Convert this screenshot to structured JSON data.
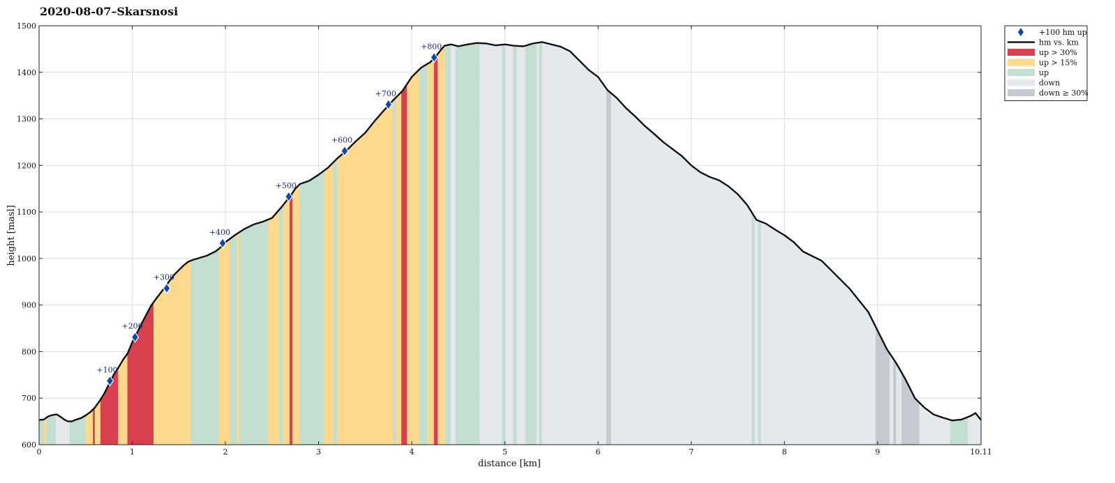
{
  "chart_data": {
    "type": "area",
    "title": "2020-08-07–Skarsnosi",
    "xlabel": "distance [km]",
    "ylabel": "height [masl]",
    "xlim": [
      0,
      10.11
    ],
    "ylim": [
      600,
      1500
    ],
    "x_ticks": [
      {
        "v": 0,
        "label": "0"
      },
      {
        "v": 1,
        "label": "1"
      },
      {
        "v": 2,
        "label": "2"
      },
      {
        "v": 3,
        "label": "3"
      },
      {
        "v": 4,
        "label": "4"
      },
      {
        "v": 5,
        "label": "5"
      },
      {
        "v": 6,
        "label": "6"
      },
      {
        "v": 7,
        "label": "7"
      },
      {
        "v": 8,
        "label": "8"
      },
      {
        "v": 9,
        "label": "9"
      },
      {
        "v": 10.11,
        "label": "10.11"
      }
    ],
    "y_ticks": [
      {
        "v": 600,
        "label": "600"
      },
      {
        "v": 700,
        "label": "700"
      },
      {
        "v": 800,
        "label": "800"
      },
      {
        "v": 900,
        "label": "900"
      },
      {
        "v": 1000,
        "label": "1000"
      },
      {
        "v": 1100,
        "label": "1100"
      },
      {
        "v": 1200,
        "label": "1200"
      },
      {
        "v": 1300,
        "label": "1300"
      },
      {
        "v": 1400,
        "label": "1400"
      },
      {
        "v": 1500,
        "label": "1500"
      }
    ],
    "grid": true,
    "legend_position": "outside top-right",
    "colors": {
      "up_gt_30": "#d9404f",
      "up_gt_15": "#fcd98c",
      "up": "#c2dfd2",
      "down": "#e7e8ec",
      "down_ge_30": "#c6c8d2",
      "line": "#111111",
      "marker": "#1446a8"
    },
    "profile": [
      [
        0.0,
        653
      ],
      [
        0.05,
        654
      ],
      [
        0.1,
        661
      ],
      [
        0.15,
        664
      ],
      [
        0.19,
        665
      ],
      [
        0.23,
        660
      ],
      [
        0.27,
        654
      ],
      [
        0.31,
        650
      ],
      [
        0.35,
        650
      ],
      [
        0.4,
        654
      ],
      [
        0.45,
        657
      ],
      [
        0.5,
        663
      ],
      [
        0.55,
        670
      ],
      [
        0.6,
        680
      ],
      [
        0.65,
        694
      ],
      [
        0.7,
        710
      ],
      [
        0.75,
        730
      ],
      [
        0.8,
        750
      ],
      [
        0.85,
        765
      ],
      [
        0.9,
        782
      ],
      [
        0.95,
        796
      ],
      [
        1.0,
        820
      ],
      [
        1.05,
        840
      ],
      [
        1.1,
        860
      ],
      [
        1.15,
        879
      ],
      [
        1.2,
        898
      ],
      [
        1.25,
        912
      ],
      [
        1.3,
        925
      ],
      [
        1.35,
        938
      ],
      [
        1.4,
        952
      ],
      [
        1.45,
        965
      ],
      [
        1.5,
        975
      ],
      [
        1.55,
        985
      ],
      [
        1.6,
        993
      ],
      [
        1.65,
        997
      ],
      [
        1.7,
        1000
      ],
      [
        1.8,
        1006
      ],
      [
        1.9,
        1016
      ],
      [
        1.95,
        1024
      ],
      [
        2.0,
        1035
      ],
      [
        2.1,
        1050
      ],
      [
        2.2,
        1063
      ],
      [
        2.3,
        1073
      ],
      [
        2.4,
        1079
      ],
      [
        2.5,
        1087
      ],
      [
        2.6,
        1110
      ],
      [
        2.7,
        1135
      ],
      [
        2.75,
        1150
      ],
      [
        2.8,
        1160
      ],
      [
        2.9,
        1167
      ],
      [
        3.0,
        1180
      ],
      [
        3.1,
        1195
      ],
      [
        3.2,
        1215
      ],
      [
        3.3,
        1232
      ],
      [
        3.4,
        1252
      ],
      [
        3.5,
        1270
      ],
      [
        3.6,
        1295
      ],
      [
        3.7,
        1318
      ],
      [
        3.8,
        1340
      ],
      [
        3.9,
        1360
      ],
      [
        4.0,
        1390
      ],
      [
        4.1,
        1410
      ],
      [
        4.2,
        1422
      ],
      [
        4.25,
        1432
      ],
      [
        4.3,
        1445
      ],
      [
        4.35,
        1457
      ],
      [
        4.42,
        1460
      ],
      [
        4.5,
        1456
      ],
      [
        4.6,
        1460
      ],
      [
        4.7,
        1463
      ],
      [
        4.8,
        1462
      ],
      [
        4.9,
        1458
      ],
      [
        5.0,
        1460
      ],
      [
        5.1,
        1457
      ],
      [
        5.2,
        1456
      ],
      [
        5.3,
        1462
      ],
      [
        5.4,
        1465
      ],
      [
        5.5,
        1460
      ],
      [
        5.6,
        1455
      ],
      [
        5.7,
        1445
      ],
      [
        5.8,
        1425
      ],
      [
        5.9,
        1405
      ],
      [
        6.0,
        1390
      ],
      [
        6.1,
        1362
      ],
      [
        6.2,
        1345
      ],
      [
        6.3,
        1323
      ],
      [
        6.4,
        1305
      ],
      [
        6.5,
        1285
      ],
      [
        6.6,
        1268
      ],
      [
        6.7,
        1250
      ],
      [
        6.8,
        1235
      ],
      [
        6.9,
        1220
      ],
      [
        7.0,
        1200
      ],
      [
        7.1,
        1185
      ],
      [
        7.2,
        1175
      ],
      [
        7.3,
        1168
      ],
      [
        7.4,
        1155
      ],
      [
        7.5,
        1138
      ],
      [
        7.6,
        1115
      ],
      [
        7.7,
        1083
      ],
      [
        7.8,
        1075
      ],
      [
        7.9,
        1062
      ],
      [
        8.0,
        1050
      ],
      [
        8.1,
        1035
      ],
      [
        8.2,
        1015
      ],
      [
        8.3,
        1005
      ],
      [
        8.4,
        995
      ],
      [
        8.5,
        975
      ],
      [
        8.6,
        955
      ],
      [
        8.7,
        935
      ],
      [
        8.8,
        910
      ],
      [
        8.9,
        885
      ],
      [
        9.0,
        845
      ],
      [
        9.1,
        805
      ],
      [
        9.2,
        775
      ],
      [
        9.3,
        740
      ],
      [
        9.4,
        700
      ],
      [
        9.5,
        680
      ],
      [
        9.6,
        665
      ],
      [
        9.7,
        658
      ],
      [
        9.8,
        652
      ],
      [
        9.9,
        654
      ],
      [
        10.0,
        662
      ],
      [
        10.05,
        668
      ],
      [
        10.11,
        653
      ]
    ],
    "segments": [
      [
        0.0,
        0.05,
        "up"
      ],
      [
        0.05,
        0.08,
        "up_gt_15"
      ],
      [
        0.08,
        0.18,
        "up"
      ],
      [
        0.18,
        0.33,
        "down"
      ],
      [
        0.33,
        0.5,
        "up"
      ],
      [
        0.5,
        0.58,
        "up_gt_15"
      ],
      [
        0.58,
        0.6,
        "up_gt_30"
      ],
      [
        0.6,
        0.66,
        "up_gt_15"
      ],
      [
        0.66,
        0.85,
        "up_gt_30"
      ],
      [
        0.85,
        0.95,
        "up_gt_15"
      ],
      [
        0.95,
        1.23,
        "up_gt_30"
      ],
      [
        1.23,
        1.63,
        "up_gt_15"
      ],
      [
        1.63,
        1.93,
        "up"
      ],
      [
        1.93,
        2.05,
        "up_gt_15"
      ],
      [
        2.05,
        2.13,
        "up"
      ],
      [
        2.13,
        2.15,
        "up_gt_15"
      ],
      [
        2.15,
        2.46,
        "up"
      ],
      [
        2.46,
        2.58,
        "up_gt_15"
      ],
      [
        2.58,
        2.62,
        "up"
      ],
      [
        2.62,
        2.69,
        "up_gt_15"
      ],
      [
        2.69,
        2.72,
        "up_gt_30"
      ],
      [
        2.72,
        2.8,
        "up_gt_15"
      ],
      [
        2.8,
        3.06,
        "up"
      ],
      [
        3.06,
        3.16,
        "up_gt_15"
      ],
      [
        3.16,
        3.2,
        "up"
      ],
      [
        3.2,
        3.8,
        "up_gt_15"
      ],
      [
        3.8,
        3.83,
        "up"
      ],
      [
        3.83,
        3.89,
        "up_gt_15"
      ],
      [
        3.89,
        3.95,
        "up_gt_30"
      ],
      [
        3.95,
        4.08,
        "up_gt_15"
      ],
      [
        4.08,
        4.17,
        "up"
      ],
      [
        4.17,
        4.24,
        "up_gt_15"
      ],
      [
        4.24,
        4.28,
        "up_gt_30"
      ],
      [
        4.28,
        4.36,
        "up_gt_15"
      ],
      [
        4.36,
        4.42,
        "up"
      ],
      [
        4.42,
        4.47,
        "down"
      ],
      [
        4.47,
        4.73,
        "up"
      ],
      [
        4.73,
        4.97,
        "down"
      ],
      [
        4.97,
        5.01,
        "up"
      ],
      [
        5.01,
        5.09,
        "down"
      ],
      [
        5.09,
        5.13,
        "up"
      ],
      [
        5.13,
        5.22,
        "down"
      ],
      [
        5.22,
        5.34,
        "up"
      ],
      [
        5.34,
        5.37,
        "down"
      ],
      [
        5.37,
        5.4,
        "up"
      ],
      [
        5.4,
        6.09,
        "down"
      ],
      [
        6.09,
        6.14,
        "down_ge_30"
      ],
      [
        6.14,
        7.65,
        "down"
      ],
      [
        7.65,
        7.68,
        "up"
      ],
      [
        7.68,
        7.72,
        "down"
      ],
      [
        7.72,
        7.75,
        "up"
      ],
      [
        7.75,
        8.98,
        "down"
      ],
      [
        8.98,
        9.13,
        "down_ge_30"
      ],
      [
        9.13,
        9.17,
        "down"
      ],
      [
        9.17,
        9.2,
        "down_ge_30"
      ],
      [
        9.2,
        9.26,
        "down"
      ],
      [
        9.26,
        9.45,
        "down_ge_30"
      ],
      [
        9.45,
        9.78,
        "down"
      ],
      [
        9.78,
        9.97,
        "up"
      ],
      [
        9.97,
        10.11,
        "down"
      ]
    ],
    "markers": [
      {
        "x": 0.76,
        "y": 737,
        "label": "+100"
      },
      {
        "x": 1.03,
        "y": 831,
        "label": "+200"
      },
      {
        "x": 1.37,
        "y": 936,
        "label": "+300"
      },
      {
        "x": 1.97,
        "y": 1033,
        "label": "+400"
      },
      {
        "x": 2.68,
        "y": 1133,
        "label": "+500"
      },
      {
        "x": 3.28,
        "y": 1231,
        "label": "+600"
      },
      {
        "x": 3.75,
        "y": 1331,
        "label": "+700"
      },
      {
        "x": 4.24,
        "y": 1432,
        "label": "+800"
      }
    ],
    "legend": [
      {
        "key": "marker",
        "label": "+100 hm up"
      },
      {
        "key": "line",
        "label": "hm vs. km"
      },
      {
        "key": "up_gt_30",
        "label": "up > 30%"
      },
      {
        "key": "up_gt_15",
        "label": "up > 15%"
      },
      {
        "key": "up",
        "label": "up"
      },
      {
        "key": "down",
        "label": "down"
      },
      {
        "key": "down_ge_30",
        "label": "down ≥ 30%"
      }
    ]
  }
}
